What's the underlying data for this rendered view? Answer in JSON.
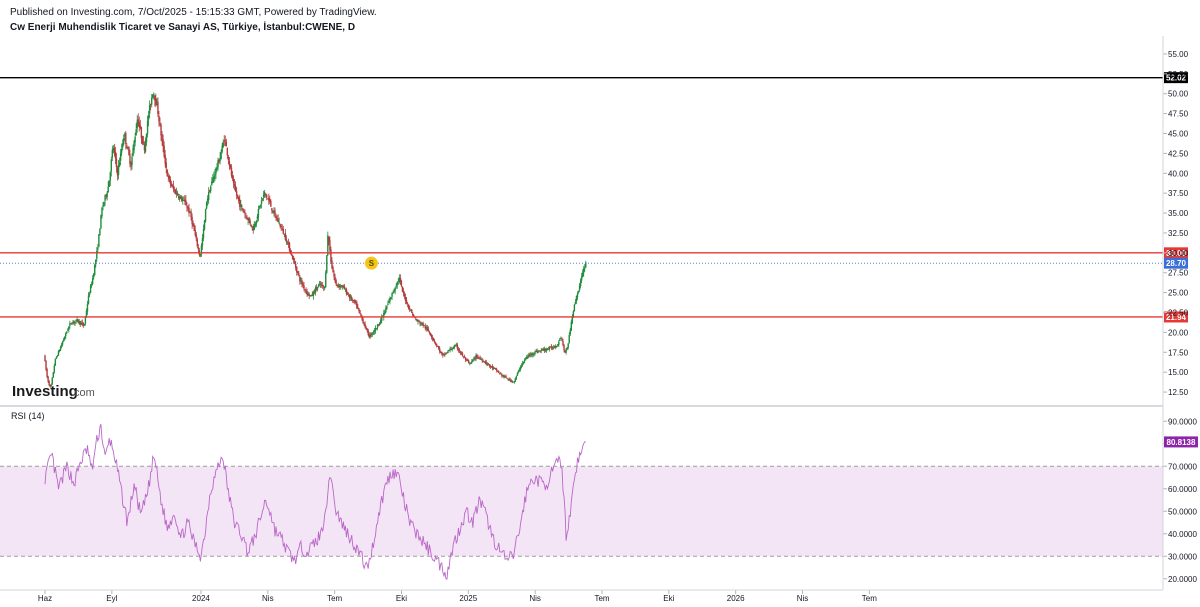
{
  "header": {
    "published": "Published on Investing.com, 7/Oct/2025 - 15:15:33 GMT, Powered by TradingView.",
    "title": "Cw Enerji Muhendislik Ticaret ve Sanayi AS, Türkiye, İstanbul:CWENE, D"
  },
  "logo": {
    "brand": "Investing",
    "suffix": ".com"
  },
  "colors": {
    "up": "#26a69a",
    "upDark": "#1b5e20",
    "down": "#c0392b",
    "level": "#e53935",
    "resistance_top": "#000000",
    "current": "#3b6fd8",
    "rsi_line": "#ba68c8",
    "rsi_band": "#f3e5f5",
    "marker": "#f5c518"
  },
  "chart_data": [
    {
      "type": "candlestick",
      "name": "price",
      "y_range": [
        11.0,
        56.5
      ],
      "y_ticks": [
        "55.00",
        "52.50",
        "50.00",
        "47.50",
        "45.00",
        "42.50",
        "40.00",
        "37.50",
        "35.00",
        "32.50",
        "30.00",
        "27.50",
        "25.00",
        "22.50",
        "20.00",
        "17.50",
        "15.00",
        "12.50"
      ],
      "y_tick_values": [
        55,
        52.5,
        50,
        47.5,
        45,
        42.5,
        40,
        37.5,
        35,
        32.5,
        30,
        27.5,
        25,
        22.5,
        20,
        17.5,
        15,
        12.5
      ],
      "x_ticks": [
        "Haz",
        "Eyl",
        "2024",
        "Nis",
        "Tem",
        "Eki",
        "2025",
        "Nis",
        "Tem",
        "Eki",
        "2026",
        "Nis",
        "Tem"
      ],
      "x_tick_months": [
        0,
        3,
        7,
        10,
        13,
        16,
        19,
        22,
        25,
        28,
        31,
        34,
        37
      ],
      "horizontal_levels": [
        {
          "value": 52.02,
          "label": "52.02",
          "color": "#000000",
          "dotted": false
        },
        {
          "value": 30.0,
          "label": "30.00",
          "color": "#e53935",
          "dotted": false
        },
        {
          "value": 21.94,
          "label": "21.94",
          "color": "#e53935",
          "dotted": false
        },
        {
          "value": 28.7,
          "label": "28.70",
          "color": "#3b6fd8",
          "dotted": true
        }
      ],
      "marker": {
        "label": "S",
        "month": 14.65,
        "value": 28.7
      },
      "price_path": [
        [
          0.0,
          17.2
        ],
        [
          0.15,
          14.2
        ],
        [
          0.3,
          12.9
        ],
        [
          0.5,
          16.5
        ],
        [
          0.8,
          18.5
        ],
        [
          1.0,
          20.0
        ],
        [
          1.2,
          21.2
        ],
        [
          1.5,
          21.5
        ],
        [
          1.8,
          20.8
        ],
        [
          2.0,
          24.5
        ],
        [
          2.2,
          27.0
        ],
        [
          2.4,
          30.5
        ],
        [
          2.6,
          35.5
        ],
        [
          2.9,
          38.5
        ],
        [
          3.1,
          43.5
        ],
        [
          3.3,
          40.0
        ],
        [
          3.6,
          45.0
        ],
        [
          3.9,
          41.0
        ],
        [
          4.2,
          47.0
        ],
        [
          4.5,
          43.0
        ],
        [
          4.7,
          47.5
        ],
        [
          4.9,
          50.5
        ],
        [
          5.1,
          48.0
        ],
        [
          5.3,
          44.0
        ],
        [
          5.55,
          39.5
        ],
        [
          5.8,
          38.0
        ],
        [
          6.1,
          37.0
        ],
        [
          6.4,
          36.0
        ],
        [
          6.6,
          34.5
        ],
        [
          6.8,
          32.0
        ],
        [
          7.0,
          29.5
        ],
        [
          7.15,
          32.5
        ],
        [
          7.3,
          36.5
        ],
        [
          7.6,
          39.5
        ],
        [
          7.9,
          42.0
        ],
        [
          8.1,
          44.5
        ],
        [
          8.3,
          41.5
        ],
        [
          8.5,
          38.5
        ],
        [
          8.8,
          36.0
        ],
        [
          9.1,
          34.5
        ],
        [
          9.4,
          33.0
        ],
        [
          9.7,
          36.0
        ],
        [
          9.9,
          37.5
        ],
        [
          10.1,
          36.5
        ],
        [
          10.3,
          35.0
        ],
        [
          10.6,
          33.5
        ],
        [
          10.9,
          31.5
        ],
        [
          11.2,
          29.0
        ],
        [
          11.5,
          26.5
        ],
        [
          11.8,
          25.0
        ],
        [
          12.0,
          24.5
        ],
        [
          12.2,
          25.5
        ],
        [
          12.4,
          26.0
        ],
        [
          12.6,
          25.5
        ],
        [
          12.75,
          32.5
        ],
        [
          12.9,
          28.5
        ],
        [
          13.1,
          26.0
        ],
        [
          13.4,
          25.8
        ],
        [
          13.7,
          24.5
        ],
        [
          14.0,
          23.5
        ],
        [
          14.3,
          21.5
        ],
        [
          14.6,
          19.5
        ],
        [
          14.9,
          20.5
        ],
        [
          15.2,
          22.0
        ],
        [
          15.5,
          24.0
        ],
        [
          15.8,
          26.0
        ],
        [
          15.95,
          26.8
        ],
        [
          16.1,
          25.0
        ],
        [
          16.4,
          23.0
        ],
        [
          16.7,
          21.5
        ],
        [
          17.0,
          21.0
        ],
        [
          17.3,
          20.0
        ],
        [
          17.6,
          18.5
        ],
        [
          17.9,
          17.0
        ],
        [
          18.2,
          17.8
        ],
        [
          18.5,
          18.3
        ],
        [
          18.8,
          17.0
        ],
        [
          19.1,
          16.0
        ],
        [
          19.4,
          17.0
        ],
        [
          19.7,
          16.5
        ],
        [
          20.0,
          15.8
        ],
        [
          20.3,
          15.2
        ],
        [
          20.6,
          14.5
        ],
        [
          20.9,
          14.0
        ],
        [
          21.1,
          13.8
        ],
        [
          21.4,
          15.8
        ],
        [
          21.7,
          17.0
        ],
        [
          22.0,
          17.5
        ],
        [
          22.4,
          17.8
        ],
        [
          22.7,
          18.0
        ],
        [
          23.0,
          18.3
        ],
        [
          23.2,
          19.5
        ],
        [
          23.4,
          17.2
        ],
        [
          23.55,
          19.0
        ],
        [
          23.7,
          22.0
        ],
        [
          23.9,
          24.5
        ],
        [
          24.1,
          26.5
        ],
        [
          24.3,
          28.7
        ]
      ]
    },
    {
      "type": "line",
      "name": "RSI (14)",
      "y_range": [
        15.0,
        95.0
      ],
      "y_ticks": [
        "90.0000",
        "80.0000",
        "70.0000",
        "60.0000",
        "50.0000",
        "40.0000",
        "30.0000",
        "20.0000"
      ],
      "y_tick_values": [
        90,
        80,
        70,
        60,
        50,
        40,
        30,
        20
      ],
      "band": [
        30,
        70
      ],
      "current": {
        "value": 80.8138,
        "label": "80.8138",
        "color": "#8e24aa"
      },
      "rsi_path": [
        [
          0.0,
          65.0
        ],
        [
          0.3,
          75.0
        ],
        [
          0.6,
          60.0
        ],
        [
          1.0,
          70.0
        ],
        [
          1.3,
          62.0
        ],
        [
          1.6,
          72.0
        ],
        [
          1.9,
          78.0
        ],
        [
          2.1,
          68.0
        ],
        [
          2.3,
          80.0
        ],
        [
          2.5,
          88.5
        ],
        [
          2.7,
          73.0
        ],
        [
          2.9,
          82.0
        ],
        [
          3.1,
          76.0
        ],
        [
          3.4,
          60.0
        ],
        [
          3.7,
          45.0
        ],
        [
          4.0,
          62.0
        ],
        [
          4.3,
          48.0
        ],
        [
          4.6,
          58.0
        ],
        [
          4.9,
          75.0
        ],
        [
          5.2,
          55.0
        ],
        [
          5.5,
          42.0
        ],
        [
          5.8,
          50.0
        ],
        [
          6.1,
          38.0
        ],
        [
          6.4,
          45.0
        ],
        [
          6.7,
          36.0
        ],
        [
          7.0,
          30.0
        ],
        [
          7.2,
          42.0
        ],
        [
          7.4,
          58.0
        ],
        [
          7.6,
          65.0
        ],
        [
          7.85,
          72.0
        ],
        [
          8.0,
          74.0
        ],
        [
          8.2,
          60.0
        ],
        [
          8.5,
          45.0
        ],
        [
          8.8,
          40.0
        ],
        [
          9.1,
          32.0
        ],
        [
          9.4,
          38.0
        ],
        [
          9.7,
          48.0
        ],
        [
          9.9,
          55.0
        ],
        [
          10.1,
          50.0
        ],
        [
          10.3,
          42.0
        ],
        [
          10.6,
          38.0
        ],
        [
          10.9,
          32.0
        ],
        [
          11.2,
          28.0
        ],
        [
          11.5,
          34.0
        ],
        [
          11.8,
          32.0
        ],
        [
          12.1,
          36.0
        ],
        [
          12.4,
          40.0
        ],
        [
          12.7,
          58.0
        ],
        [
          12.85,
          68.0
        ],
        [
          13.0,
          52.0
        ],
        [
          13.3,
          45.0
        ],
        [
          13.6,
          40.0
        ],
        [
          13.9,
          35.0
        ],
        [
          14.2,
          30.0
        ],
        [
          14.45,
          24.0
        ],
        [
          14.7,
          34.0
        ],
        [
          15.0,
          50.0
        ],
        [
          15.3,
          62.0
        ],
        [
          15.6,
          68.0
        ],
        [
          15.9,
          65.0
        ],
        [
          16.1,
          55.0
        ],
        [
          16.4,
          44.0
        ],
        [
          16.7,
          40.0
        ],
        [
          17.0,
          36.0
        ],
        [
          17.3,
          32.0
        ],
        [
          17.6,
          28.0
        ],
        [
          17.9,
          24.0
        ],
        [
          18.05,
          22.0
        ],
        [
          18.3,
          34.0
        ],
        [
          18.6,
          42.0
        ],
        [
          18.9,
          50.0
        ],
        [
          19.2,
          45.0
        ],
        [
          19.5,
          55.0
        ],
        [
          19.8,
          48.0
        ],
        [
          20.1,
          38.0
        ],
        [
          20.4,
          33.0
        ],
        [
          20.7,
          28.0
        ],
        [
          21.0,
          30.0
        ],
        [
          21.3,
          42.0
        ],
        [
          21.6,
          58.0
        ],
        [
          21.9,
          65.0
        ],
        [
          22.2,
          63.0
        ],
        [
          22.5,
          62.0
        ],
        [
          22.8,
          68.0
        ],
        [
          23.0,
          72.0
        ],
        [
          23.2,
          70.0
        ],
        [
          23.4,
          38.0
        ],
        [
          23.6,
          52.0
        ],
        [
          23.8,
          68.0
        ],
        [
          24.0,
          75.0
        ],
        [
          24.15,
          78.0
        ],
        [
          24.3,
          80.8138
        ]
      ]
    }
  ]
}
